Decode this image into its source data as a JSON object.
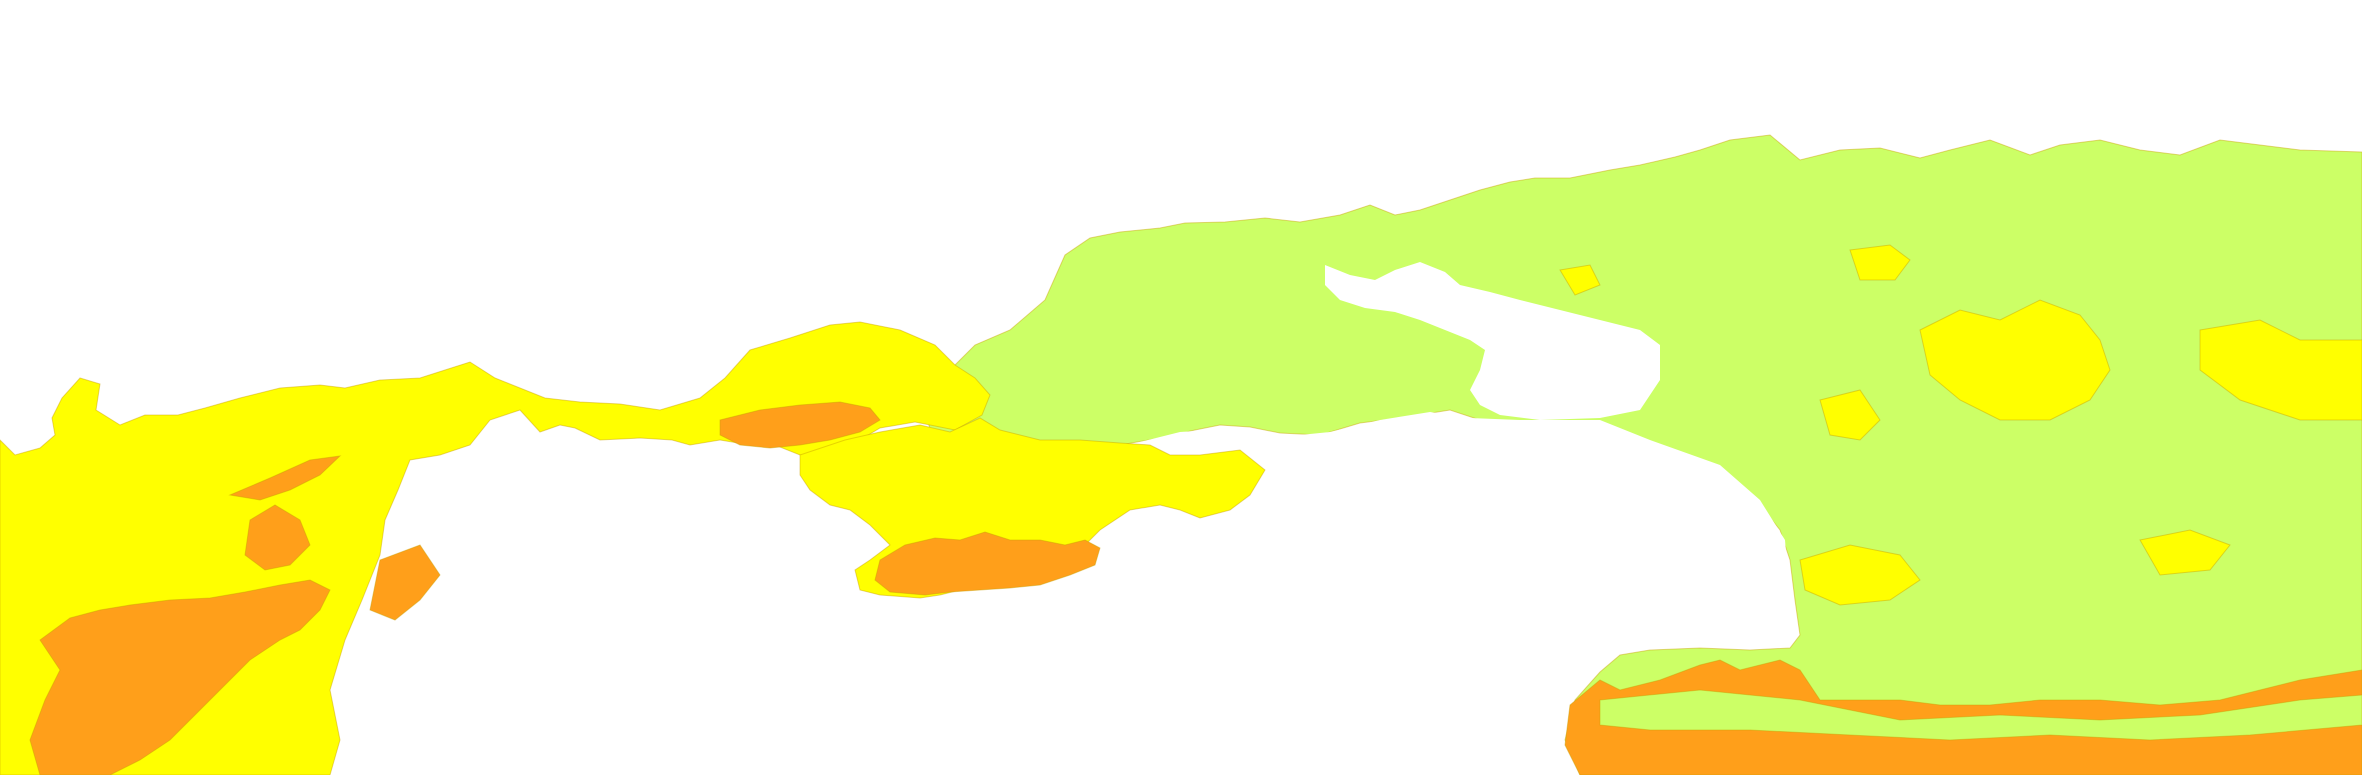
{
  "map": {
    "colors": {
      "background": "#ffffff",
      "zone_yellow": "#ffff00",
      "zone_orange": "#ff9f1a",
      "zone_green": "#ccff66",
      "border": "#c9a000"
    }
  }
}
